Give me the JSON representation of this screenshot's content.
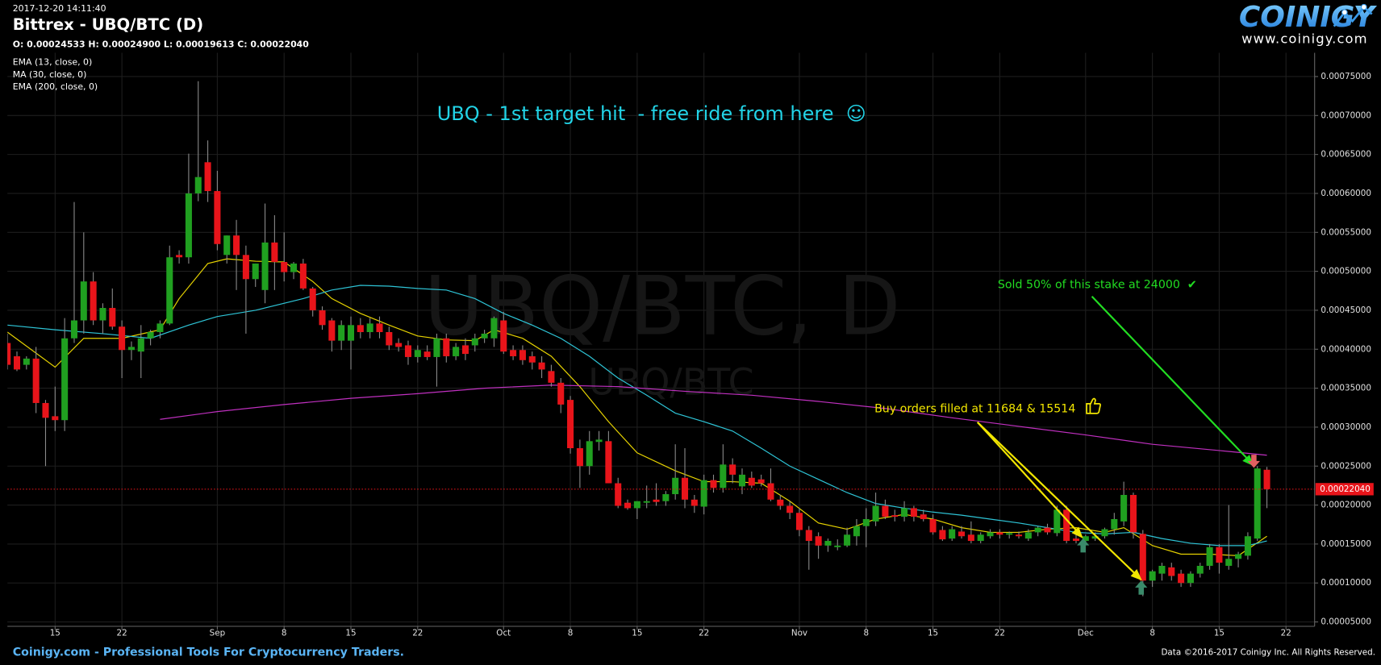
{
  "header": {
    "timestamp": "2017-12-20 14:11:40",
    "ohlc": "O: 0.00024533 H: 0.00024900 L: 0.00019613 C: 0.00022040"
  },
  "logo": {
    "name": "COINIGY",
    "url": "www.coinigy.com"
  },
  "footer": {
    "left": "Coinigy.com - Professional Tools For Cryptocurrency Traders.",
    "right": "Data ©2016-2017 Coinigy Inc. All Rights Reserved."
  },
  "chart_data": {
    "type": "candlestick",
    "title": "Bittrex - UBQ/BTC (D)",
    "watermark": "UBQ/BTC, D",
    "watermark_sub": "UBQ/BTC",
    "up_color": "#20a020",
    "down_color": "#e8141a",
    "wick_color": "#8a8a8a",
    "grid": true,
    "xlim": [
      "2017-08-10",
      "2017-12-25"
    ],
    "ylim": [
      4.44e-05,
      0.0007805
    ],
    "xticks": [
      {
        "value": "2017-08-15",
        "label": "15"
      },
      {
        "value": "2017-08-22",
        "label": "22"
      },
      {
        "value": "2017-09-01",
        "label": "Sep"
      },
      {
        "value": "2017-09-08",
        "label": "8"
      },
      {
        "value": "2017-09-15",
        "label": "15"
      },
      {
        "value": "2017-09-22",
        "label": "22"
      },
      {
        "value": "2017-10-01",
        "label": "Oct"
      },
      {
        "value": "2017-10-08",
        "label": "8"
      },
      {
        "value": "2017-10-15",
        "label": "15"
      },
      {
        "value": "2017-10-22",
        "label": "22"
      },
      {
        "value": "2017-11-01",
        "label": "Nov"
      },
      {
        "value": "2017-11-08",
        "label": "8"
      },
      {
        "value": "2017-11-15",
        "label": "15"
      },
      {
        "value": "2017-11-22",
        "label": "22"
      },
      {
        "value": "2017-12-01",
        "label": "Dec"
      },
      {
        "value": "2017-12-08",
        "label": "8"
      },
      {
        "value": "2017-12-15",
        "label": "15"
      },
      {
        "value": "2017-12-22",
        "label": "22"
      }
    ],
    "yticks": [
      {
        "value": 5e-05,
        "label": "0.00005000"
      },
      {
        "value": 0.0001,
        "label": "0.00010000"
      },
      {
        "value": 0.00015,
        "label": "0.00015000"
      },
      {
        "value": 0.0002,
        "label": "0.00020000"
      },
      {
        "value": 0.00025,
        "label": "0.00025000"
      },
      {
        "value": 0.0003,
        "label": "0.00030000"
      },
      {
        "value": 0.00035,
        "label": "0.00035000"
      },
      {
        "value": 0.0004,
        "label": "0.00040000"
      },
      {
        "value": 0.00045,
        "label": "0.00045000"
      },
      {
        "value": 0.0005,
        "label": "0.00050000"
      },
      {
        "value": 0.00055,
        "label": "0.00055000"
      },
      {
        "value": 0.0006,
        "label": "0.00060000"
      },
      {
        "value": 0.00065,
        "label": "0.00065000"
      },
      {
        "value": 0.0007,
        "label": "0.00070000"
      },
      {
        "value": 0.00075,
        "label": "0.00075000"
      }
    ],
    "last_price": {
      "value": 0.0002204,
      "label": "0.00022040",
      "color": "#e8141a"
    },
    "x": [
      "2017-08-10",
      "2017-08-11",
      "2017-08-12",
      "2017-08-13",
      "2017-08-14",
      "2017-08-15",
      "2017-08-16",
      "2017-08-17",
      "2017-08-18",
      "2017-08-19",
      "2017-08-20",
      "2017-08-21",
      "2017-08-22",
      "2017-08-23",
      "2017-08-24",
      "2017-08-25",
      "2017-08-26",
      "2017-08-27",
      "2017-08-28",
      "2017-08-29",
      "2017-08-30",
      "2017-08-31",
      "2017-09-01",
      "2017-09-02",
      "2017-09-03",
      "2017-09-04",
      "2017-09-05",
      "2017-09-06",
      "2017-09-07",
      "2017-09-08",
      "2017-09-09",
      "2017-09-10",
      "2017-09-11",
      "2017-09-12",
      "2017-09-13",
      "2017-09-14",
      "2017-09-15",
      "2017-09-16",
      "2017-09-17",
      "2017-09-18",
      "2017-09-19",
      "2017-09-20",
      "2017-09-21",
      "2017-09-22",
      "2017-09-23",
      "2017-09-24",
      "2017-09-25",
      "2017-09-26",
      "2017-09-27",
      "2017-09-28",
      "2017-09-29",
      "2017-09-30",
      "2017-10-01",
      "2017-10-02",
      "2017-10-03",
      "2017-10-04",
      "2017-10-05",
      "2017-10-06",
      "2017-10-07",
      "2017-10-08",
      "2017-10-09",
      "2017-10-10",
      "2017-10-11",
      "2017-10-12",
      "2017-10-13",
      "2017-10-14",
      "2017-10-15",
      "2017-10-16",
      "2017-10-17",
      "2017-10-18",
      "2017-10-19",
      "2017-10-20",
      "2017-10-21",
      "2017-10-22",
      "2017-10-23",
      "2017-10-24",
      "2017-10-25",
      "2017-10-26",
      "2017-10-27",
      "2017-10-28",
      "2017-10-29",
      "2017-10-30",
      "2017-10-31",
      "2017-11-01",
      "2017-11-02",
      "2017-11-03",
      "2017-11-04",
      "2017-11-05",
      "2017-11-06",
      "2017-11-07",
      "2017-11-08",
      "2017-11-09",
      "2017-11-10",
      "2017-11-11",
      "2017-11-12",
      "2017-11-13",
      "2017-11-14",
      "2017-11-15",
      "2017-11-16",
      "2017-11-17",
      "2017-11-18",
      "2017-11-19",
      "2017-11-20",
      "2017-11-21",
      "2017-11-22",
      "2017-11-23",
      "2017-11-24",
      "2017-11-25",
      "2017-11-26",
      "2017-11-27",
      "2017-11-28",
      "2017-11-29",
      "2017-11-30",
      "2017-12-01",
      "2017-12-02",
      "2017-12-03",
      "2017-12-04",
      "2017-12-05",
      "2017-12-06",
      "2017-12-07",
      "2017-12-08",
      "2017-12-09",
      "2017-12-10",
      "2017-12-11",
      "2017-12-12",
      "2017-12-13",
      "2017-12-14",
      "2017-12-15",
      "2017-12-16",
      "2017-12-17",
      "2017-12-18",
      "2017-12-19",
      "2017-12-20"
    ],
    "open": [
      0.000408,
      0.000391,
      0.00038,
      0.000388,
      0.000331,
      0.000314,
      0.000309,
      0.000414,
      0.000437,
      0.000487,
      0.000437,
      0.000453,
      0.000429,
      0.000399,
      0.000397,
      0.000414,
      0.000422,
      0.000433,
      0.000521,
      0.000518,
      0.0006,
      0.00064,
      0.000603,
      0.000521,
      0.000546,
      0.000521,
      0.00049,
      0.000476,
      0.000537,
      0.000512,
      0.000499,
      0.00051,
      0.000478,
      0.00045,
      0.000437,
      0.000411,
      0.000411,
      0.000431,
      0.000422,
      0.000433,
      0.000422,
      0.000408,
      0.000405,
      0.00039,
      0.000397,
      0.00039,
      0.000414,
      0.000391,
      0.000405,
      0.000405,
      0.000414,
      0.000414,
      0.000437,
      0.000399,
      0.000399,
      0.000391,
      0.000383,
      0.000372,
      0.000357,
      0.000335,
      0.000273,
      0.00025,
      0.000281,
      0.000282,
      0.000228,
      0.000203,
      0.000196,
      0.000203,
      0.000207,
      0.000205,
      0.000214,
      0.000235,
      0.000207,
      0.000198,
      0.000232,
      0.000222,
      0.000252,
      0.000224,
      0.000235,
      0.000233,
      0.000228,
      0.000207,
      0.000199,
      0.00019,
      0.000168,
      0.00016,
      0.000148,
      0.000146,
      0.000148,
      0.00016,
      0.000173,
      0.000179,
      0.000199,
      0.000187,
      0.000185,
      0.000196,
      0.000188,
      0.000182,
      0.000168,
      0.000157,
      0.000166,
      0.000162,
      0.000154,
      0.00016,
      0.000165,
      0.000162,
      0.000162,
      0.000157,
      0.000165,
      0.000171,
      0.000164,
      0.000194,
      0.000157,
      0.000154,
      0.000157,
      0.00016,
      0.000169,
      0.000179,
      0.000213,
      0.000163,
      0.000103,
      0.000112,
      0.00012,
      0.000112,
      0.0001,
      0.000112,
      0.000122,
      0.000146,
      0.000122,
      0.000131,
      0.000135,
      0.000157,
      0.00024533
    ],
    "high": [
      0.00042,
      0.000397,
      0.000391,
      0.000403,
      0.000335,
      0.000352,
      0.00044,
      0.000589,
      0.00055,
      0.000499,
      0.000459,
      0.000478,
      0.000437,
      0.00041,
      0.000431,
      0.000425,
      0.000437,
      0.000533,
      0.000527,
      0.000651,
      0.000744,
      0.000668,
      0.000629,
      0.000546,
      0.000566,
      0.000533,
      0.00051,
      0.000587,
      0.000572,
      0.00055,
      0.000512,
      0.000516,
      0.00048,
      0.000455,
      0.00044,
      0.000437,
      0.000442,
      0.00044,
      0.00044,
      0.000442,
      0.000429,
      0.000414,
      0.000411,
      0.000405,
      0.000405,
      0.00042,
      0.00042,
      0.000408,
      0.000414,
      0.00042,
      0.000425,
      0.000442,
      0.000448,
      0.000405,
      0.000405,
      0.000397,
      0.000391,
      0.00038,
      0.000363,
      0.00034,
      0.000284,
      0.000295,
      0.000295,
      0.000295,
      0.000235,
      0.000207,
      0.000205,
      0.000225,
      0.000228,
      0.000218,
      0.000278,
      0.000273,
      0.000213,
      0.000239,
      0.000239,
      0.000278,
      0.00026,
      0.000247,
      0.000243,
      0.000239,
      0.000247,
      0.000213,
      0.000205,
      0.000196,
      0.000173,
      0.000165,
      0.000157,
      0.000156,
      0.000171,
      0.000182,
      0.000196,
      0.000216,
      0.000207,
      0.000194,
      0.000205,
      0.000199,
      0.000194,
      0.000188,
      0.000173,
      0.000173,
      0.000173,
      0.000179,
      0.000165,
      0.000169,
      0.000169,
      0.000166,
      0.000166,
      0.000169,
      0.000173,
      0.000176,
      0.000199,
      0.000199,
      0.000162,
      0.000162,
      0.000165,
      0.000171,
      0.00019,
      0.00023,
      0.000216,
      0.000168,
      0.000117,
      0.000126,
      0.000126,
      0.000117,
      0.000115,
      0.000126,
      0.00015,
      0.00015,
      0.0002,
      0.00014,
      0.000165,
      0.00025,
      0.000249
    ],
    "low": [
      0.000374,
      0.000372,
      0.000374,
      0.000318,
      0.00025,
      0.000295,
      0.000295,
      0.000408,
      0.00042,
      0.000431,
      0.00042,
      0.000425,
      0.000363,
      0.000386,
      0.000363,
      0.000405,
      0.000414,
      0.000431,
      0.00051,
      0.00051,
      0.00059,
      0.000589,
      0.000527,
      0.00051,
      0.000476,
      0.00042,
      0.00048,
      0.000459,
      0.000476,
      0.000487,
      0.00049,
      0.000476,
      0.000442,
      0.000425,
      0.000397,
      0.000399,
      0.000374,
      0.000414,
      0.000414,
      0.000414,
      0.000399,
      0.000397,
      0.00038,
      0.000383,
      0.000386,
      0.000352,
      0.000383,
      0.000386,
      0.000386,
      0.000397,
      0.000408,
      0.000403,
      0.000394,
      0.000386,
      0.00038,
      0.000374,
      0.000363,
      0.000352,
      0.000318,
      0.000266,
      0.000222,
      0.000239,
      0.00027,
      0.000228,
      0.000196,
      0.000194,
      0.000182,
      0.000196,
      0.000199,
      0.000199,
      0.000207,
      0.000196,
      0.00019,
      0.000188,
      0.000216,
      0.000216,
      0.000228,
      0.000214,
      0.000222,
      0.000224,
      0.000205,
      0.000194,
      0.000182,
      0.00016,
      0.000117,
      0.000131,
      0.00014,
      0.000142,
      0.000146,
      0.000148,
      0.000146,
      0.000173,
      0.000182,
      0.000179,
      0.000179,
      0.000179,
      0.000179,
      0.000162,
      0.000154,
      0.000154,
      0.000157,
      0.000151,
      0.000151,
      0.000157,
      0.000157,
      0.000157,
      0.000157,
      0.000154,
      0.00016,
      0.000162,
      0.00016,
      0.000151,
      0.000151,
      0.000151,
      0.000154,
      0.000157,
      0.000162,
      0.000173,
      0.000157,
      8.3e-05,
      9.5e-05,
      0.000103,
      0.000103,
      9.5e-05,
      9.5e-05,
      0.000107,
      0.000117,
      0.000112,
      0.000117,
      0.00012,
      0.00013,
      0.000154,
      0.00019613
    ],
    "close": [
      0.00038,
      0.000374,
      0.000388,
      0.000331,
      0.000312,
      0.000309,
      0.000414,
      0.000437,
      0.000487,
      0.000437,
      0.000453,
      0.000429,
      0.000399,
      0.000403,
      0.000414,
      0.000422,
      0.000433,
      0.000518,
      0.000518,
      0.0006,
      0.000621,
      0.000603,
      0.000535,
      0.000546,
      0.000521,
      0.00049,
      0.00051,
      0.000537,
      0.000512,
      0.000499,
      0.00051,
      0.000478,
      0.00045,
      0.000431,
      0.000411,
      0.000431,
      0.000431,
      0.000422,
      0.000433,
      0.000422,
      0.000405,
      0.000403,
      0.00039,
      0.000399,
      0.00039,
      0.000414,
      0.000391,
      0.000403,
      0.000394,
      0.000414,
      0.00042,
      0.00044,
      0.000397,
      0.000391,
      0.000386,
      0.000383,
      0.000374,
      0.000357,
      0.000329,
      0.000273,
      0.00025,
      0.000282,
      0.000284,
      0.000228,
      0.000199,
      0.000196,
      0.000205,
      0.000205,
      0.000204,
      0.000214,
      0.000235,
      0.000207,
      0.000199,
      0.000232,
      0.000222,
      0.000252,
      0.000239,
      0.000239,
      0.000225,
      0.000228,
      0.000207,
      0.000199,
      0.00019,
      0.000168,
      0.000154,
      0.000148,
      0.000154,
      0.000148,
      0.000162,
      0.000173,
      0.000182,
      0.000199,
      0.000185,
      0.000185,
      0.000196,
      0.000185,
      0.000182,
      0.000165,
      0.000156,
      0.000169,
      0.00016,
      0.000154,
      0.000162,
      0.000165,
      0.000162,
      0.000164,
      0.00016,
      0.000165,
      0.000171,
      0.000165,
      0.000194,
      0.000154,
      0.000154,
      0.00016,
      0.00016,
      0.000169,
      0.000182,
      0.000213,
      0.000165,
      0.000103,
      0.000115,
      0.000122,
      0.000109,
      0.0001,
      0.000112,
      0.000122,
      0.000146,
      0.000126,
      0.000131,
      0.000137,
      0.00016,
      0.000247,
      0.0002204
    ],
    "lines": [
      {
        "name": "EMA (13, close, 0)",
        "color": "#e6d200",
        "x": [
          "2017-08-10",
          "2017-08-15",
          "2017-08-18",
          "2017-08-22",
          "2017-08-26",
          "2017-08-28",
          "2017-08-31",
          "2017-09-02",
          "2017-09-05",
          "2017-09-08",
          "2017-09-11",
          "2017-09-13",
          "2017-09-16",
          "2017-09-19",
          "2017-09-22",
          "2017-09-25",
          "2017-09-28",
          "2017-09-30",
          "2017-10-03",
          "2017-10-06",
          "2017-10-09",
          "2017-10-12",
          "2017-10-15",
          "2017-10-19",
          "2017-10-22",
          "2017-10-25",
          "2017-10-28",
          "2017-10-31",
          "2017-11-03",
          "2017-11-06",
          "2017-11-09",
          "2017-11-12",
          "2017-11-15",
          "2017-11-18",
          "2017-11-21",
          "2017-11-24",
          "2017-11-27",
          "2017-11-30",
          "2017-12-03",
          "2017-12-05",
          "2017-12-08",
          "2017-12-11",
          "2017-12-14",
          "2017-12-17",
          "2017-12-20"
        ],
        "values": [
          0.000422,
          0.000377,
          0.000414,
          0.000414,
          0.000425,
          0.000465,
          0.00051,
          0.000516,
          0.000513,
          0.000512,
          0.000487,
          0.000465,
          0.000446,
          0.000431,
          0.000417,
          0.000412,
          0.000411,
          0.000425,
          0.000414,
          0.000391,
          0.000352,
          0.000307,
          0.000267,
          0.000244,
          0.00023,
          0.00023,
          0.000228,
          0.000205,
          0.000177,
          0.000169,
          0.000182,
          0.000188,
          0.000182,
          0.000171,
          0.000165,
          0.000165,
          0.000169,
          0.000171,
          0.000165,
          0.000171,
          0.000148,
          0.000137,
          0.000137,
          0.000135,
          0.00016
        ]
      },
      {
        "name": "MA (30, close, 0)",
        "color": "#2ec4d6",
        "x": [
          "2017-08-10",
          "2017-08-15",
          "2017-08-20",
          "2017-08-25",
          "2017-08-29",
          "2017-09-01",
          "2017-09-05",
          "2017-09-10",
          "2017-09-13",
          "2017-09-16",
          "2017-09-19",
          "2017-09-22",
          "2017-09-25",
          "2017-09-28",
          "2017-10-01",
          "2017-10-04",
          "2017-10-07",
          "2017-10-10",
          "2017-10-13",
          "2017-10-16",
          "2017-10-19",
          "2017-10-22",
          "2017-10-25",
          "2017-10-28",
          "2017-10-31",
          "2017-11-03",
          "2017-11-06",
          "2017-11-09",
          "2017-11-12",
          "2017-11-15",
          "2017-11-18",
          "2017-11-21",
          "2017-11-24",
          "2017-11-27",
          "2017-11-30",
          "2017-12-03",
          "2017-12-06",
          "2017-12-09",
          "2017-12-12",
          "2017-12-15",
          "2017-12-18",
          "2017-12-20"
        ],
        "values": [
          0.000431,
          0.000425,
          0.00042,
          0.000414,
          0.000431,
          0.000442,
          0.00045,
          0.000465,
          0.000476,
          0.000482,
          0.000481,
          0.000478,
          0.000476,
          0.000465,
          0.000446,
          0.000431,
          0.000414,
          0.000391,
          0.000363,
          0.000341,
          0.000318,
          0.000307,
          0.000295,
          0.000273,
          0.00025,
          0.000233,
          0.000216,
          0.000202,
          0.000196,
          0.000191,
          0.000187,
          0.000182,
          0.000177,
          0.000171,
          0.000165,
          0.000163,
          0.000165,
          0.000157,
          0.000151,
          0.000148,
          0.000148,
          0.000154
        ]
      },
      {
        "name": "EMA (200, close, 0)",
        "color": "#c030c0",
        "x": [
          "2017-08-26",
          "2017-09-01",
          "2017-09-08",
          "2017-09-15",
          "2017-09-22",
          "2017-09-29",
          "2017-10-06",
          "2017-10-13",
          "2017-10-20",
          "2017-10-27",
          "2017-11-03",
          "2017-11-10",
          "2017-11-17",
          "2017-11-24",
          "2017-12-01",
          "2017-12-08",
          "2017-12-15",
          "2017-12-20"
        ],
        "values": [
          0.00031,
          0.00032,
          0.000329,
          0.000337,
          0.000343,
          0.00035,
          0.000354,
          0.000352,
          0.000346,
          0.000341,
          0.000333,
          0.000324,
          0.000312,
          0.000301,
          0.00029,
          0.000278,
          0.00027,
          0.000264
        ]
      }
    ],
    "annotations": [
      {
        "text": "UBQ - 1st target hit  - free ride from here  ☺",
        "color": "#22d3e6"
      },
      {
        "text": "Sold 50% of this stake at 24000  ✔",
        "color": "#22dd22"
      },
      {
        "text": "Buy orders filled at 11684 & 15514",
        "color": "#f2e600"
      }
    ]
  }
}
